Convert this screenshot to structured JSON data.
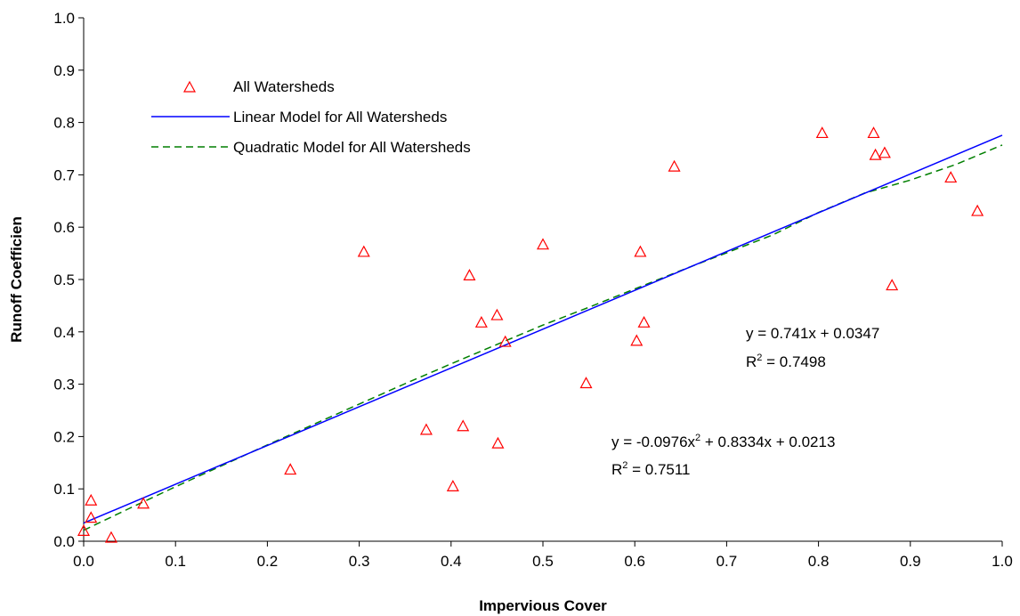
{
  "chart_data": {
    "type": "scatter",
    "title": "",
    "xlabel": "Impervious Cover",
    "ylabel": "Runoff Coefficien",
    "xlim": [
      0,
      1.0
    ],
    "ylim": [
      0,
      1.0
    ],
    "xticks": [
      "0.0",
      "0.1",
      "0.2",
      "0.3",
      "0.4",
      "0.5",
      "0.6",
      "0.7",
      "0.8",
      "0.9",
      "1.0"
    ],
    "yticks": [
      "0.0",
      "0.1",
      "0.2",
      "0.3",
      "0.4",
      "0.5",
      "0.6",
      "0.7",
      "0.8",
      "0.9",
      "1.0"
    ],
    "grid": false,
    "legend_position": "top-left",
    "legend": [
      {
        "label": "All Watersheds",
        "kind": "marker",
        "color": "#ff0000"
      },
      {
        "label": "Linear Model for All Watersheds",
        "kind": "line",
        "color": "#0000ff"
      },
      {
        "label": "Quadratic Model for All Watersheds",
        "kind": "dashed",
        "color": "#007f00"
      }
    ],
    "series": [
      {
        "name": "All Watersheds",
        "color": "#ff0000",
        "marker": "triangle-open",
        "points": [
          [
            0.0,
            0.02
          ],
          [
            0.008,
            0.045
          ],
          [
            0.008,
            0.078
          ],
          [
            0.03,
            0.007
          ],
          [
            0.065,
            0.072
          ],
          [
            0.225,
            0.137
          ],
          [
            0.305,
            0.553
          ],
          [
            0.373,
            0.213
          ],
          [
            0.402,
            0.105
          ],
          [
            0.413,
            0.22
          ],
          [
            0.42,
            0.508
          ],
          [
            0.433,
            0.418
          ],
          [
            0.45,
            0.432
          ],
          [
            0.451,
            0.187
          ],
          [
            0.459,
            0.381
          ],
          [
            0.5,
            0.567
          ],
          [
            0.547,
            0.302
          ],
          [
            0.602,
            0.383
          ],
          [
            0.606,
            0.553
          ],
          [
            0.61,
            0.418
          ],
          [
            0.643,
            0.716
          ],
          [
            0.804,
            0.78
          ],
          [
            0.86,
            0.78
          ],
          [
            0.862,
            0.738
          ],
          [
            0.872,
            0.742
          ],
          [
            0.88,
            0.489
          ],
          [
            0.944,
            0.695
          ],
          [
            0.973,
            0.631
          ]
        ]
      },
      {
        "name": "Linear Model for All Watersheds",
        "color": "#0000ff",
        "type": "line",
        "slope": 0.741,
        "intercept": 0.0347
      },
      {
        "name": "Quadratic Model for All Watersheds",
        "color": "#007f00",
        "type": "dashed-line",
        "points": [
          [
            0.0,
            0.021
          ],
          [
            0.05,
            0.063
          ],
          [
            0.1,
            0.104
          ],
          [
            0.15,
            0.144
          ],
          [
            0.2,
            0.184
          ],
          [
            0.25,
            0.223
          ],
          [
            0.3,
            0.262
          ],
          [
            0.35,
            0.301
          ],
          [
            0.4,
            0.339
          ],
          [
            0.45,
            0.376
          ],
          [
            0.5,
            0.413
          ],
          [
            0.55,
            0.447
          ],
          [
            0.6,
            0.482
          ],
          [
            0.65,
            0.517
          ],
          [
            0.7,
            0.551
          ],
          [
            0.75,
            0.585
          ],
          [
            0.8,
            0.628
          ],
          [
            0.85,
            0.665
          ],
          [
            0.9,
            0.69
          ],
          [
            0.95,
            0.72
          ],
          [
            1.0,
            0.757
          ]
        ]
      }
    ],
    "annotations": {
      "linear_equation": "y = 0.741x + 0.0347",
      "linear_r2_prefix": "R",
      "linear_r2_sup": "2",
      "linear_r2_value": " = 0.7498",
      "quad_equation_prefix": "y = -0.0976x",
      "quad_equation_sup": "2",
      "quad_equation_suffix": " + 0.8334x + 0.0213",
      "quad_r2_prefix": "R",
      "quad_r2_sup": "2",
      "quad_r2_value": " = 0.7511"
    }
  }
}
